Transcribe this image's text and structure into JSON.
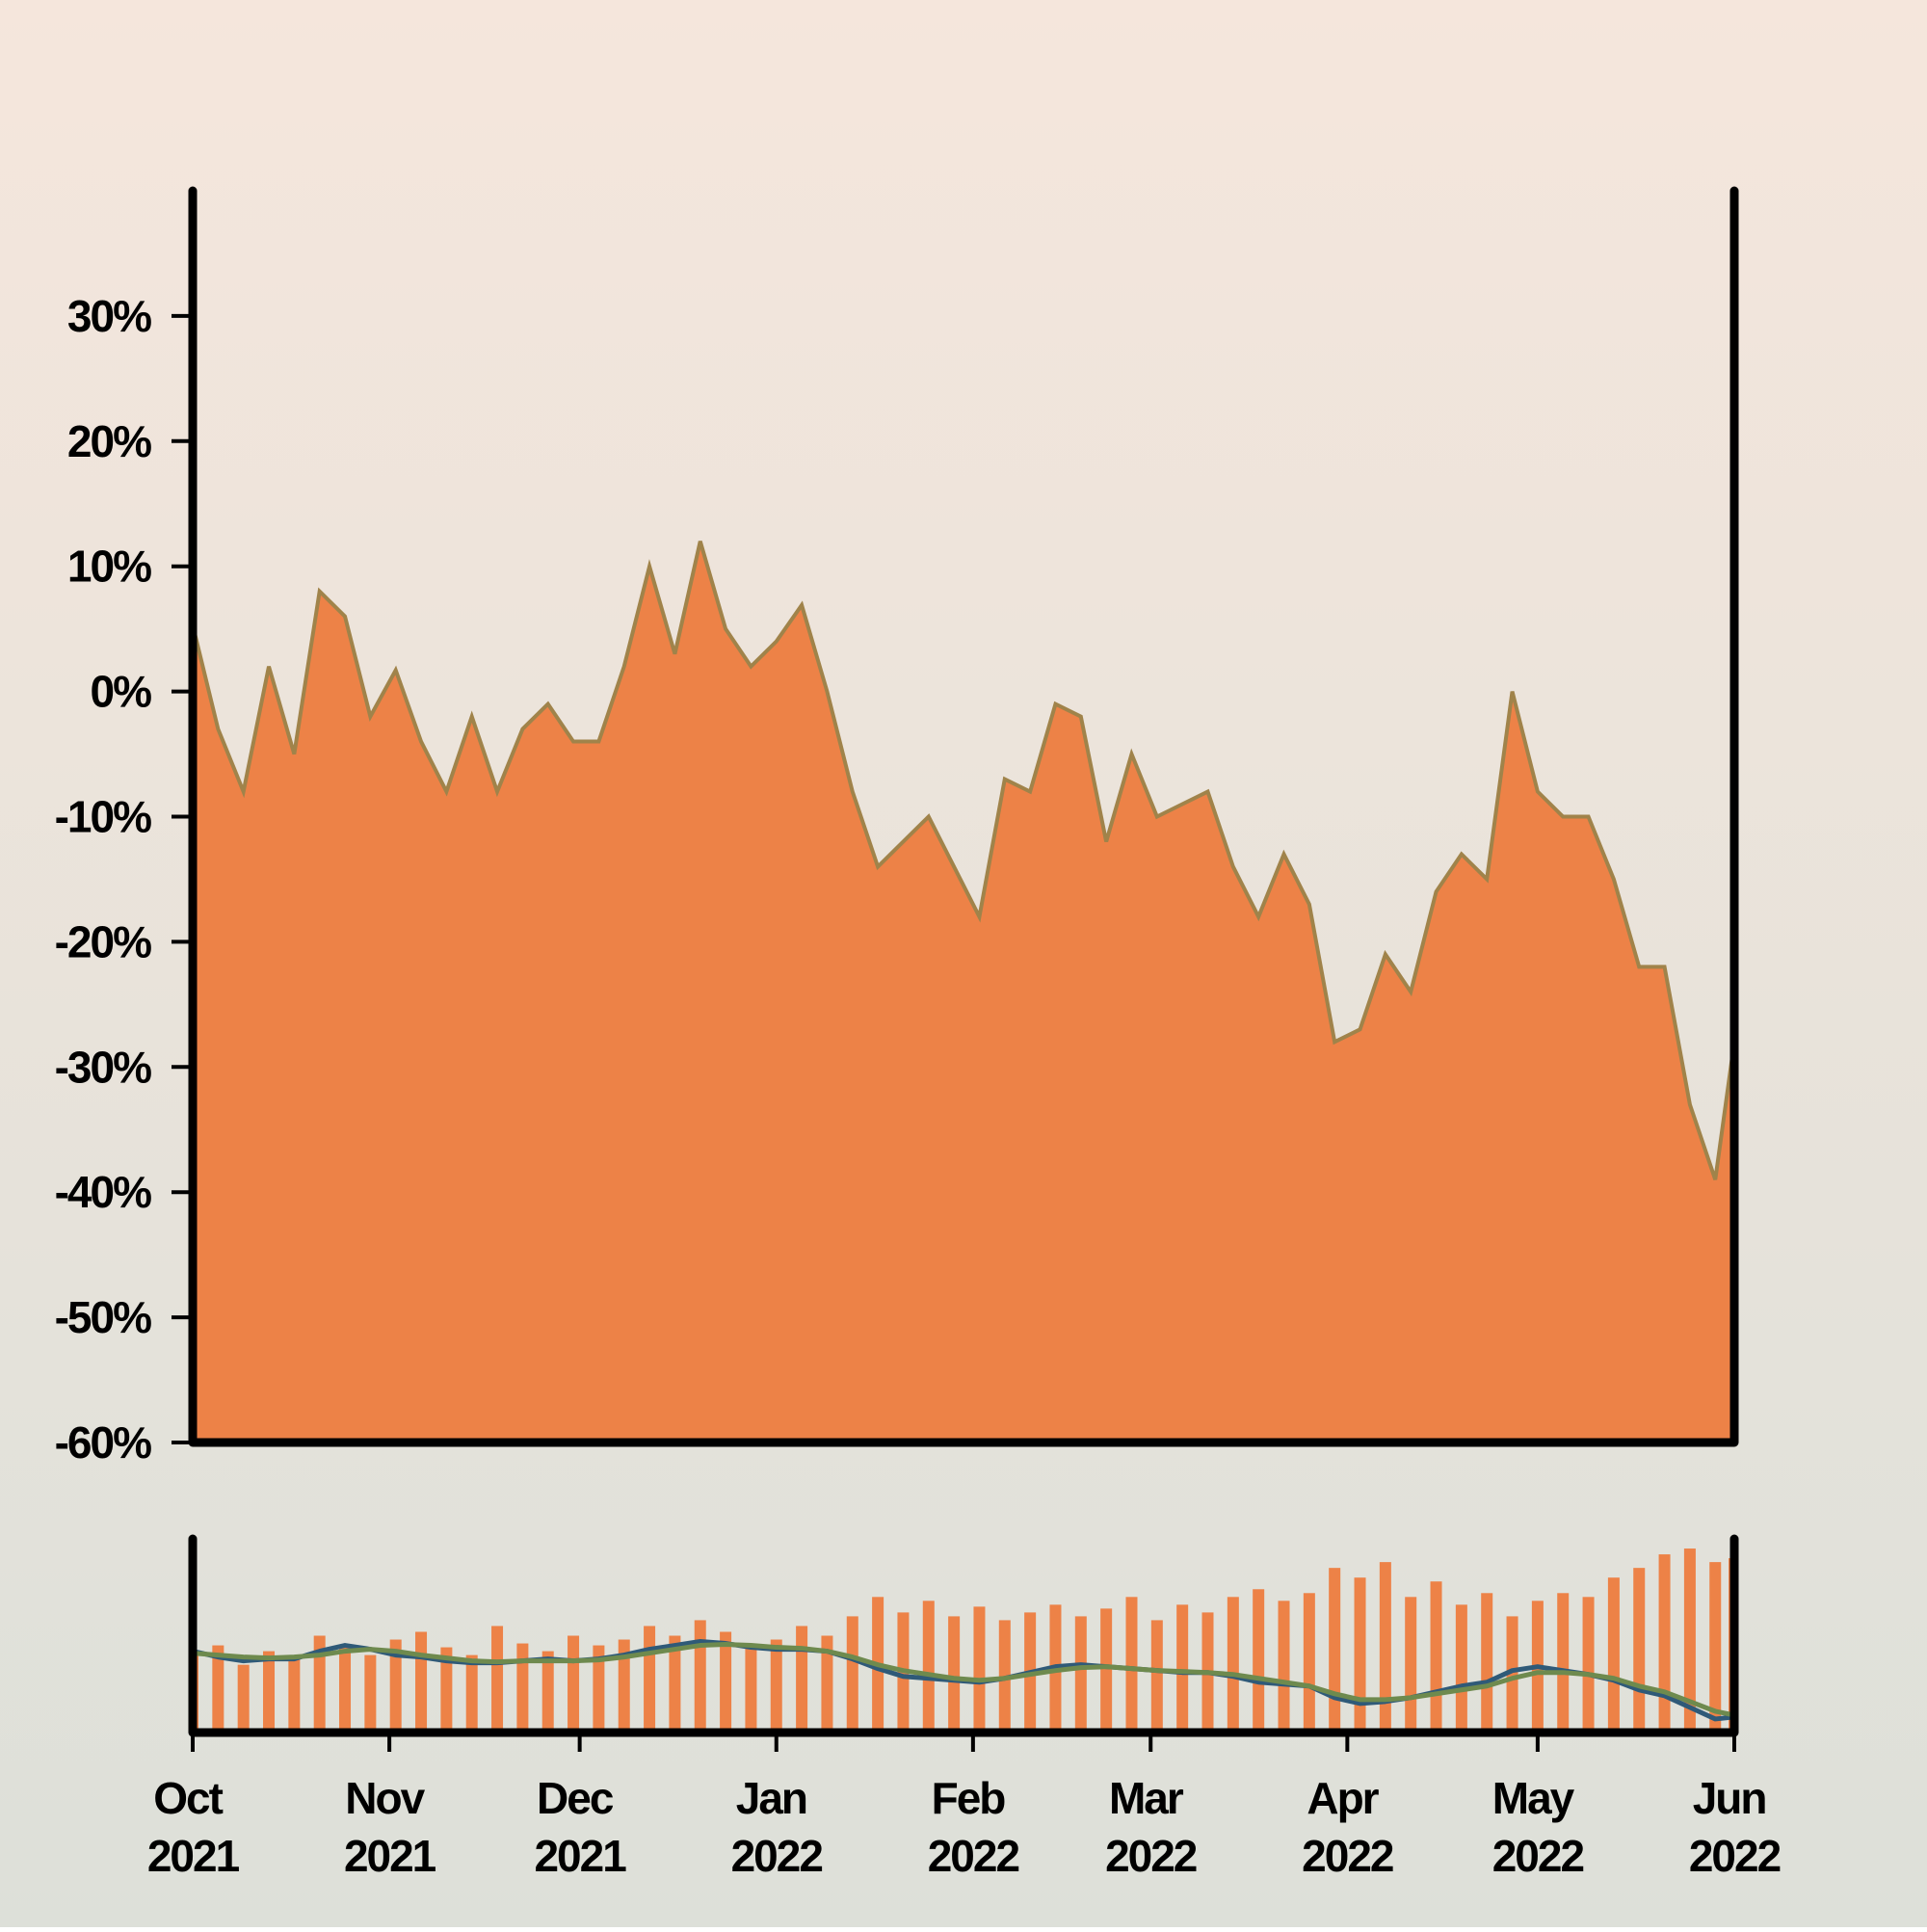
{
  "chart_data": [
    {
      "type": "area",
      "x": [
        0,
        4,
        8,
        12,
        16,
        20,
        24,
        28,
        32,
        36,
        40,
        44,
        48,
        52,
        56,
        60,
        64,
        68,
        72,
        76,
        80,
        84,
        88,
        92,
        96,
        100,
        104,
        108,
        112,
        116,
        120,
        124,
        128,
        132,
        136,
        140,
        144,
        148,
        152,
        156,
        160,
        164,
        168,
        172,
        176,
        180,
        184,
        188,
        192,
        196,
        200,
        204,
        208,
        212,
        216,
        220,
        224,
        228,
        232,
        236,
        240,
        243
      ],
      "series": [
        {
          "color": "#ed8247",
          "line_color": "#a0834a",
          "values": [
            5.3,
            -3,
            -8,
            2,
            -5,
            8,
            6,
            -2,
            1.7,
            -4,
            -8,
            -2,
            -8,
            -3,
            -1,
            -4,
            -4,
            2,
            10,
            3,
            12,
            5,
            2,
            4,
            6.9,
            0,
            -8,
            -14,
            -12,
            -10,
            -14,
            -18,
            -7,
            -8,
            -1,
            -2,
            -12,
            -5,
            -10,
            -9,
            -8,
            -14,
            -18,
            -13,
            -17,
            -28,
            -27,
            -21,
            -24,
            -16,
            -13,
            -15,
            0,
            -8,
            -10,
            -10,
            -15,
            -22,
            -22,
            -33,
            -39,
            -28
          ]
        }
      ],
      "xlim": [
        0,
        243
      ],
      "ylim": [
        -60,
        40
      ],
      "yticks": [
        {
          "value": -60,
          "label": "-60%"
        },
        {
          "value": -50,
          "label": "-50%"
        },
        {
          "value": -40,
          "label": "-40%"
        },
        {
          "value": -30,
          "label": "-30%"
        },
        {
          "value": -20,
          "label": "-20%"
        },
        {
          "value": -10,
          "label": "-10%"
        },
        {
          "value": 0,
          "label": "0%"
        },
        {
          "value": 10,
          "label": "10%"
        },
        {
          "value": 20,
          "label": "20%"
        },
        {
          "value": 30,
          "label": "30%"
        }
      ]
    },
    {
      "type": "bar",
      "x": [
        0,
        4,
        8,
        12,
        16,
        20,
        24,
        28,
        32,
        36,
        40,
        44,
        48,
        52,
        56,
        60,
        64,
        68,
        72,
        76,
        80,
        84,
        88,
        92,
        96,
        100,
        104,
        108,
        112,
        116,
        120,
        124,
        128,
        132,
        136,
        140,
        144,
        148,
        152,
        156,
        160,
        164,
        168,
        172,
        176,
        180,
        184,
        188,
        192,
        196,
        200,
        204,
        208,
        212,
        216,
        220,
        224,
        228,
        232,
        236,
        240,
        243
      ],
      "values": [
        40,
        45,
        35,
        42,
        38,
        50,
        45,
        40,
        48,
        52,
        44,
        40,
        55,
        46,
        42,
        50,
        45,
        48,
        55,
        50,
        58,
        52,
        45,
        48,
        55,
        50,
        60,
        70,
        62,
        68,
        60,
        65,
        58,
        62,
        66,
        60,
        64,
        70,
        58,
        66,
        62,
        70,
        74,
        68,
        72,
        85,
        80,
        88,
        70,
        78,
        66,
        72,
        60,
        68,
        72,
        70,
        80,
        85,
        92,
        95,
        88,
        90
      ],
      "color": "#ed8247",
      "ylim": [
        0,
        100
      ],
      "series": [
        {
          "color": "#2f5a78",
          "axis": "y2",
          "values": [
            2,
            -1,
            -3,
            -2,
            -2,
            2,
            5,
            3,
            0,
            -1,
            -3,
            -4,
            -4,
            -3,
            -2,
            -3,
            -2,
            0,
            3,
            5,
            7,
            6,
            4,
            3,
            3,
            2,
            -2,
            -7,
            -11,
            -12,
            -13,
            -14,
            -12,
            -9,
            -6,
            -5,
            -6,
            -7,
            -8,
            -9,
            -9,
            -11,
            -14,
            -15,
            -16,
            -22,
            -25,
            -24,
            -22,
            -19,
            -16,
            -14,
            -8,
            -6,
            -8,
            -10,
            -13,
            -18,
            -21,
            -27,
            -33,
            -32
          ]
        },
        {
          "color": "#6e8a4e",
          "axis": "y2",
          "values": [
            1,
            0,
            -1,
            -1.5,
            -1,
            0,
            2,
            3,
            2,
            0,
            -1.5,
            -3,
            -3.5,
            -3,
            -3,
            -3,
            -2.5,
            -1,
            1,
            3,
            5,
            5.5,
            5,
            4,
            3.5,
            2,
            -1,
            -5,
            -8,
            -10,
            -12,
            -13,
            -12,
            -10,
            -8,
            -6.5,
            -6,
            -7,
            -8,
            -8.5,
            -9,
            -10,
            -12,
            -14,
            -16,
            -20,
            -23,
            -23,
            -22,
            -20,
            -18,
            -16,
            -12,
            -9,
            -9,
            -10,
            -12,
            -16,
            -19,
            -24,
            -29,
            -31
          ]
        }
      ],
      "y2lim": [
        -40,
        60
      ],
      "xlim": [
        0,
        243
      ],
      "xticks": [
        {
          "value": 0,
          "label": "Oct 2021"
        },
        {
          "value": 31,
          "label": "Nov 2021"
        },
        {
          "value": 61,
          "label": "Dec 2021"
        },
        {
          "value": 92,
          "label": "Jan 2022"
        },
        {
          "value": 123,
          "label": "Feb 2022"
        },
        {
          "value": 151,
          "label": "Mar 2022"
        },
        {
          "value": 182,
          "label": "Apr 2022"
        },
        {
          "value": 212,
          "label": "May 2022"
        },
        {
          "value": 243,
          "label": "Jun 2022"
        }
      ]
    }
  ]
}
